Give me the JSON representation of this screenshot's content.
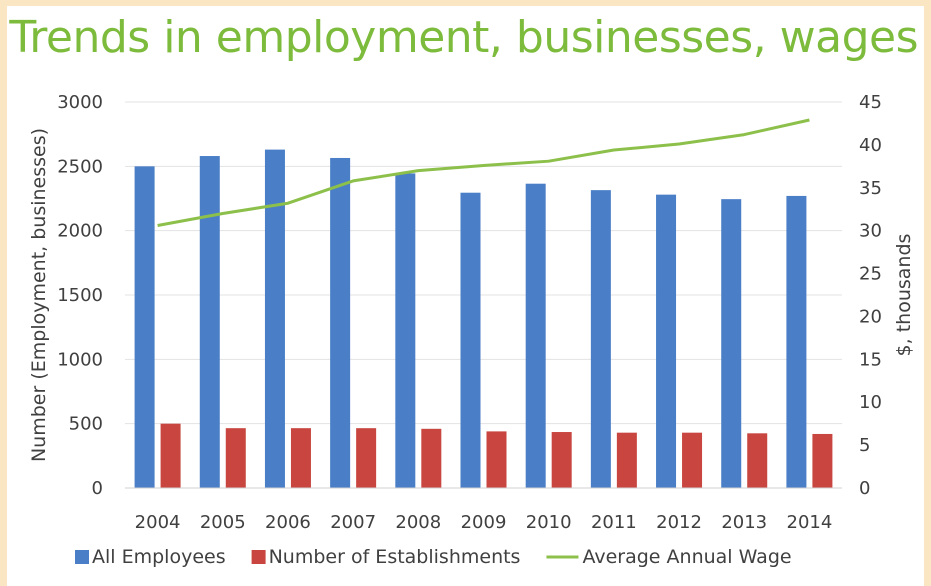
{
  "chart_data": {
    "type": "bar",
    "title": "Trends in employment, businesses, wages",
    "categories": [
      "2004",
      "2005",
      "2006",
      "2007",
      "2008",
      "2009",
      "2010",
      "2011",
      "2012",
      "2013",
      "2014"
    ],
    "series": [
      {
        "name": "All Employees",
        "type": "bar",
        "axis": "left",
        "color": "#4a7ec7",
        "values": [
          2500,
          2580,
          2630,
          2565,
          2445,
          2295,
          2365,
          2315,
          2280,
          2245,
          2270
        ]
      },
      {
        "name": "Number of Establishments",
        "type": "bar",
        "axis": "left",
        "color": "#c8463f",
        "values": [
          500,
          465,
          465,
          465,
          460,
          440,
          435,
          430,
          430,
          425,
          420
        ]
      },
      {
        "name": "Average Annual Wage",
        "type": "line",
        "axis": "right",
        "color": "#8cc04b",
        "values": [
          30.6,
          32.0,
          33.2,
          35.8,
          37.0,
          37.6,
          38.1,
          39.4,
          40.1,
          41.2,
          42.9
        ]
      }
    ],
    "ylabel": "Number (Employment, businesses)",
    "y2label": "$, thousands",
    "ylim": [
      0,
      3000
    ],
    "y2lim": [
      0,
      45
    ],
    "yticks": [
      "0",
      "500",
      "1000",
      "1500",
      "2000",
      "2500",
      "3000"
    ],
    "y2ticks": [
      "0",
      "5",
      "10",
      "15",
      "20",
      "25",
      "30",
      "35",
      "40",
      "45"
    ],
    "grid": true,
    "legend": "bottom"
  }
}
